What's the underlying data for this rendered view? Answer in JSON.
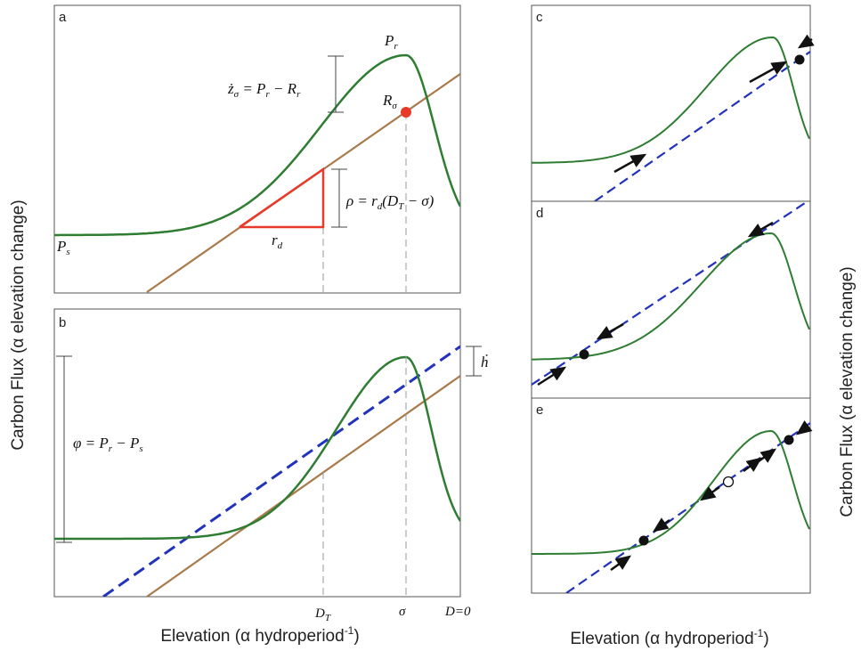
{
  "axes": {
    "x_label": "Elevation (α hydroperiod",
    "x_label_sup": "-1",
    "x_label_close": ")",
    "y_label": "Carbon Flux (α elevation change)"
  },
  "panels": {
    "a": {
      "letter": "a"
    },
    "b": {
      "letter": "b"
    },
    "c": {
      "letter": "c"
    },
    "d": {
      "letter": "d"
    },
    "e": {
      "letter": "e"
    }
  },
  "annotations": {
    "Pr": {
      "base": "P",
      "sub": "r"
    },
    "Ps": {
      "base": "P",
      "sub": "s"
    },
    "Rsigma": {
      "base": "R",
      "sub": "σ"
    },
    "rd": {
      "base": "r",
      "sub": "d"
    },
    "zdot": {
      "lhs": "ż",
      "lhs_sub": "σ",
      "rhs": " = P",
      "rhs_sub": "r",
      "rhs2": " − R",
      "rhs2_sub": "r"
    },
    "rho": {
      "lhs": "ρ = r",
      "lhs_sub": "d",
      "rhs": "(D",
      "rhs_sub": "T",
      "rhs2": " − σ)"
    },
    "phi": {
      "lhs": "φ = P",
      "lhs_sub": "r",
      "rhs": " − P",
      "rhs_sub": "s"
    },
    "hdot": {
      "text": "ḣ"
    }
  },
  "ticks": {
    "DT": {
      "base": "D",
      "sub": "T"
    },
    "sigma": {
      "text": "σ"
    },
    "D0": {
      "text": "D=0"
    }
  },
  "colors": {
    "production": "#2e7d32",
    "respiration": "#a97a4a",
    "accretion": "#2233bb",
    "triangle": "#e8392a",
    "marker": "#e8392a",
    "arrow": "#111111",
    "frame": "#555555",
    "guide": "#999999"
  }
}
